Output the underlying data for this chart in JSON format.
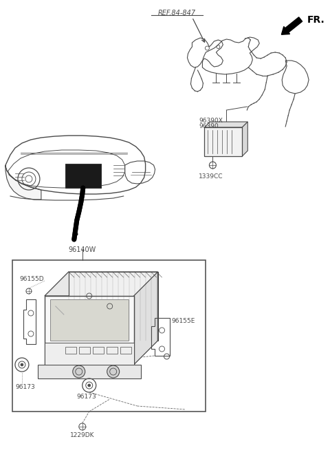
{
  "background_color": "#ffffff",
  "line_color": "#4a4a4a",
  "text_color": "#4a4a4a",
  "fig_width": 4.8,
  "fig_height": 6.67,
  "dpi": 100,
  "labels": {
    "ref_847": "REF.84-847",
    "fr": "FR.",
    "part_96390X": "96390X",
    "part_96390": "96390",
    "part_1339CC": "1339CC",
    "part_96140W": "96140W",
    "part_96155D": "96155D",
    "part_96155E": "96155E",
    "part_96173_left": "96173",
    "part_96173_bottom": "96173",
    "part_1229DK": "1229DK"
  }
}
